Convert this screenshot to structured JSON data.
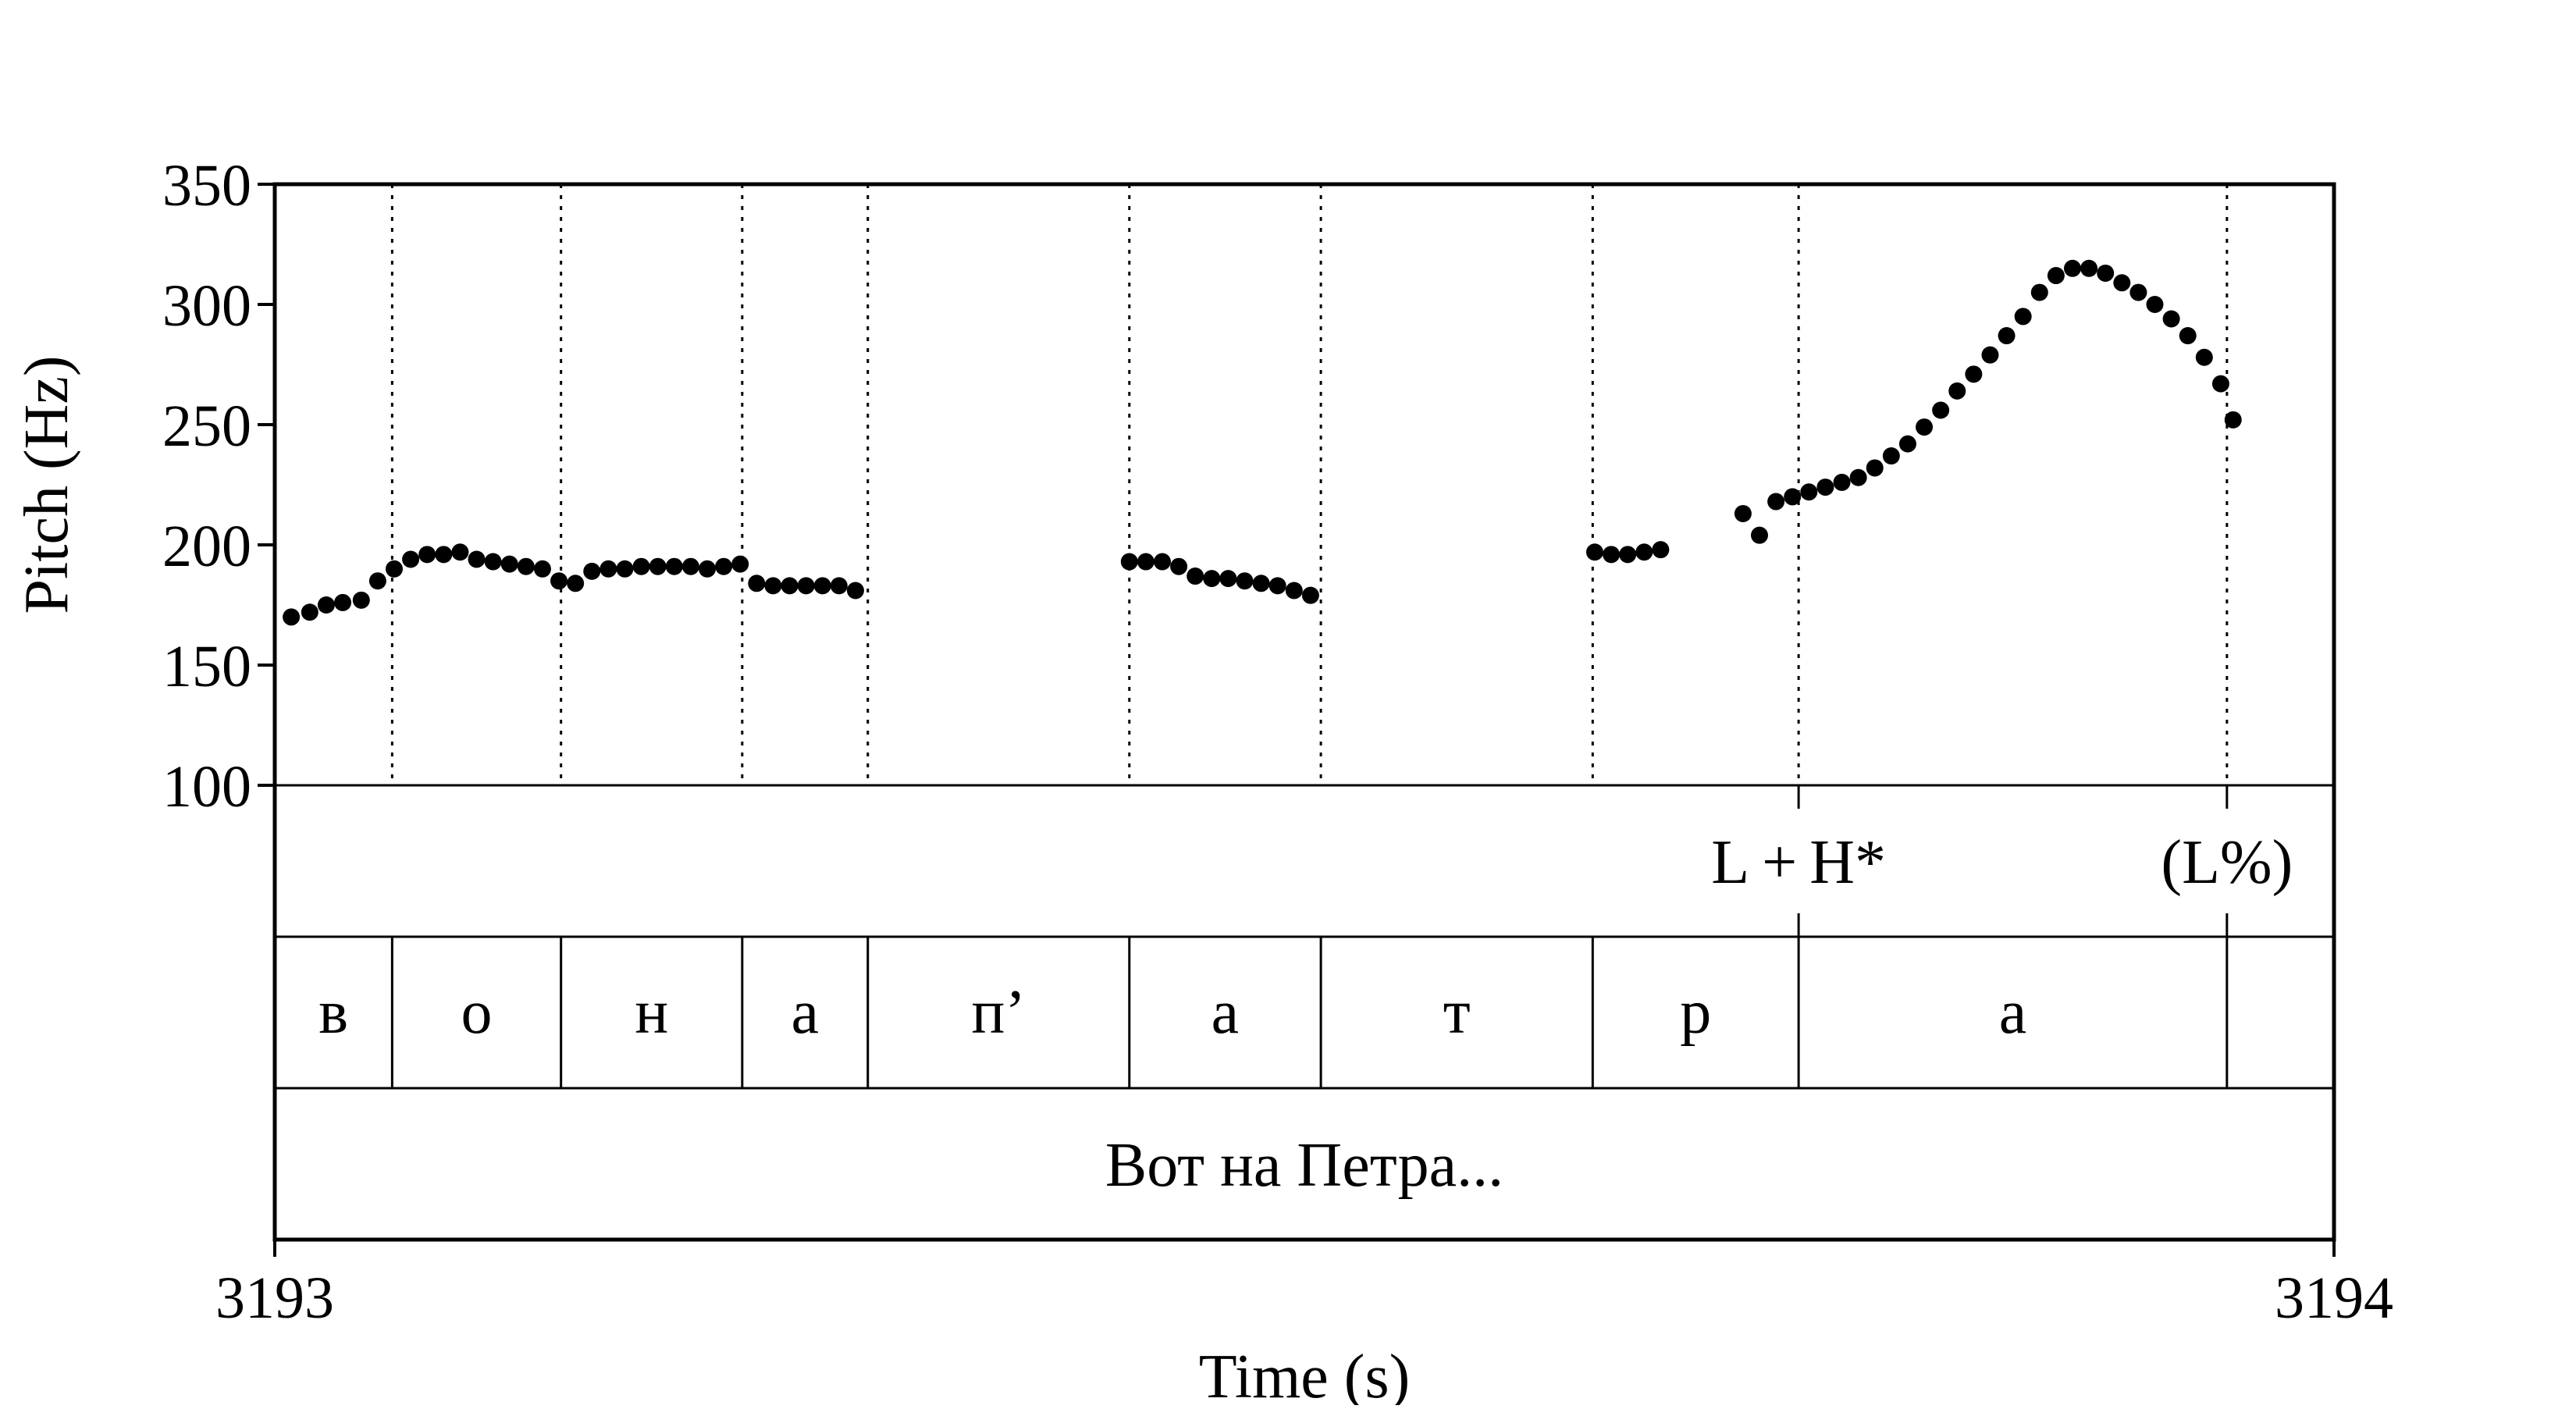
{
  "chart_data": {
    "type": "scatter",
    "xlabel": "Time (s)",
    "ylabel": "Pitch (Hz)",
    "xlim": [
      3193,
      3194
    ],
    "ylim": [
      100,
      350
    ],
    "x_ticks": [
      "3193",
      "3194"
    ],
    "y_ticks": [
      "100",
      "150",
      "200",
      "250",
      "300",
      "350"
    ],
    "grid": false,
    "segment_boundaries": [
      3193.057,
      3193.139,
      3193.227,
      3193.288,
      3193.415,
      3193.508,
      3193.64,
      3193.74,
      3193.948
    ],
    "tones": [
      {
        "label": "L + H*",
        "time": 3193.74
      },
      {
        "label": "(L%)",
        "time": 3193.948
      }
    ],
    "segments": [
      {
        "label": "в",
        "start": 3193.0,
        "end": 3193.057
      },
      {
        "label": "о",
        "start": 3193.057,
        "end": 3193.139
      },
      {
        "label": "н",
        "start": 3193.139,
        "end": 3193.227
      },
      {
        "label": "а",
        "start": 3193.227,
        "end": 3193.288
      },
      {
        "label": "п’",
        "start": 3193.288,
        "end": 3193.415
      },
      {
        "label": "а",
        "start": 3193.415,
        "end": 3193.508
      },
      {
        "label": "т",
        "start": 3193.508,
        "end": 3193.64
      },
      {
        "label": "р",
        "start": 3193.64,
        "end": 3193.74
      },
      {
        "label": "а",
        "start": 3193.74,
        "end": 3193.948
      }
    ],
    "words": [
      {
        "label": "Вот на Петра...",
        "start": 3193.0,
        "end": 3194.0
      }
    ],
    "pitch": [
      [
        3193.008,
        170
      ],
      [
        3193.017,
        172
      ],
      [
        3193.025,
        175
      ],
      [
        3193.033,
        176
      ],
      [
        3193.042,
        177
      ],
      [
        3193.05,
        185
      ],
      [
        3193.058,
        190
      ],
      [
        3193.066,
        194
      ],
      [
        3193.074,
        196
      ],
      [
        3193.082,
        196
      ],
      [
        3193.09,
        197
      ],
      [
        3193.098,
        194
      ],
      [
        3193.106,
        193
      ],
      [
        3193.114,
        192
      ],
      [
        3193.122,
        191
      ],
      [
        3193.13,
        190
      ],
      [
        3193.138,
        185
      ],
      [
        3193.146,
        184
      ],
      [
        3193.154,
        189
      ],
      [
        3193.162,
        190
      ],
      [
        3193.17,
        190
      ],
      [
        3193.178,
        191
      ],
      [
        3193.186,
        191
      ],
      [
        3193.194,
        191
      ],
      [
        3193.202,
        191
      ],
      [
        3193.21,
        190
      ],
      [
        3193.218,
        191
      ],
      [
        3193.226,
        192
      ],
      [
        3193.234,
        184
      ],
      [
        3193.242,
        183
      ],
      [
        3193.25,
        183
      ],
      [
        3193.258,
        183
      ],
      [
        3193.266,
        183
      ],
      [
        3193.274,
        183
      ],
      [
        3193.282,
        181
      ],
      [
        3193.415,
        193
      ],
      [
        3193.423,
        193
      ],
      [
        3193.431,
        193
      ],
      [
        3193.439,
        191
      ],
      [
        3193.447,
        187
      ],
      [
        3193.455,
        186
      ],
      [
        3193.463,
        186
      ],
      [
        3193.471,
        185
      ],
      [
        3193.479,
        184
      ],
      [
        3193.487,
        183
      ],
      [
        3193.495,
        181
      ],
      [
        3193.503,
        179
      ],
      [
        3193.641,
        197
      ],
      [
        3193.649,
        196
      ],
      [
        3193.657,
        196
      ],
      [
        3193.665,
        197
      ],
      [
        3193.673,
        198
      ],
      [
        3193.713,
        213
      ],
      [
        3193.721,
        204
      ],
      [
        3193.729,
        218
      ],
      [
        3193.737,
        220
      ],
      [
        3193.745,
        222
      ],
      [
        3193.753,
        224
      ],
      [
        3193.761,
        226
      ],
      [
        3193.769,
        228
      ],
      [
        3193.777,
        232
      ],
      [
        3193.785,
        237
      ],
      [
        3193.793,
        242
      ],
      [
        3193.801,
        249
      ],
      [
        3193.809,
        256
      ],
      [
        3193.817,
        264
      ],
      [
        3193.825,
        271
      ],
      [
        3193.833,
        279
      ],
      [
        3193.841,
        287
      ],
      [
        3193.849,
        295
      ],
      [
        3193.857,
        305
      ],
      [
        3193.865,
        312
      ],
      [
        3193.873,
        315
      ],
      [
        3193.881,
        315
      ],
      [
        3193.889,
        313
      ],
      [
        3193.897,
        309
      ],
      [
        3193.905,
        305
      ],
      [
        3193.913,
        300
      ],
      [
        3193.921,
        294
      ],
      [
        3193.929,
        287
      ],
      [
        3193.937,
        278
      ],
      [
        3193.945,
        267
      ],
      [
        3193.951,
        252
      ]
    ]
  }
}
